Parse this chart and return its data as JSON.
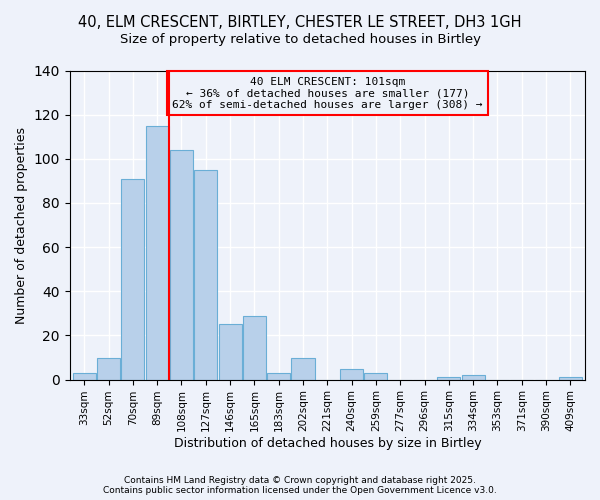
{
  "title": "40, ELM CRESCENT, BIRTLEY, CHESTER LE STREET, DH3 1GH",
  "subtitle": "Size of property relative to detached houses in Birtley",
  "xlabel": "Distribution of detached houses by size in Birtley",
  "ylabel": "Number of detached properties",
  "bar_labels": [
    "33sqm",
    "52sqm",
    "70sqm",
    "89sqm",
    "108sqm",
    "127sqm",
    "146sqm",
    "165sqm",
    "183sqm",
    "202sqm",
    "221sqm",
    "240sqm",
    "259sqm",
    "277sqm",
    "296sqm",
    "315sqm",
    "334sqm",
    "353sqm",
    "371sqm",
    "390sqm",
    "409sqm"
  ],
  "bar_values": [
    3,
    10,
    91,
    115,
    104,
    95,
    25,
    29,
    3,
    10,
    0,
    5,
    3,
    0,
    0,
    1,
    2,
    0,
    0,
    0,
    1
  ],
  "bar_color": "#b8d0ea",
  "bar_edge_color": "#6aaed6",
  "ylim": [
    0,
    140
  ],
  "yticks": [
    0,
    20,
    40,
    60,
    80,
    100,
    120,
    140
  ],
  "vline_color": "red",
  "annotation_title": "40 ELM CRESCENT: 101sqm",
  "annotation_line2": "← 36% of detached houses are smaller (177)",
  "annotation_line3": "62% of semi-detached houses are larger (308) →",
  "annotation_box_color": "red",
  "background_color": "#eef2fa",
  "footer_line1": "Contains HM Land Registry data © Crown copyright and database right 2025.",
  "footer_line2": "Contains public sector information licensed under the Open Government Licence v3.0.",
  "title_fontsize": 10.5,
  "subtitle_fontsize": 9.5
}
